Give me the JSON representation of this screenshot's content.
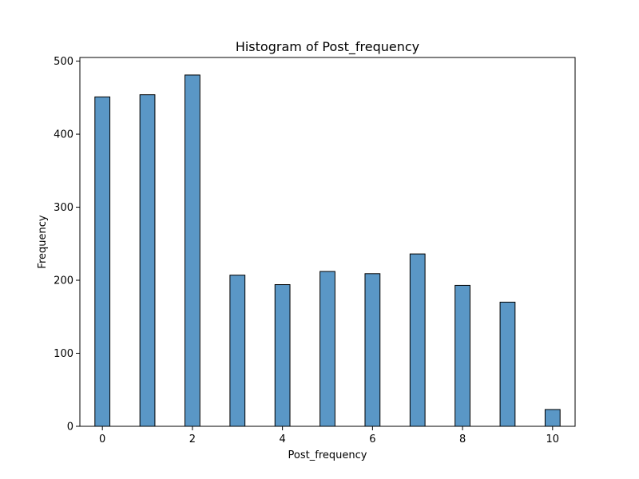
{
  "chart_data": {
    "type": "bar",
    "title": "Histogram of Post_frequency",
    "xlabel": "Post_frequency",
    "ylabel": "Frequency",
    "xlim": [
      -0.5,
      10.5
    ],
    "ylim": [
      0,
      505
    ],
    "xticks": [
      0,
      2,
      4,
      6,
      8,
      10
    ],
    "yticks": [
      0,
      100,
      200,
      300,
      400,
      500
    ],
    "bin_width": 0.333,
    "bins": [
      {
        "x": 0,
        "value": 451
      },
      {
        "x": 1,
        "value": 454
      },
      {
        "x": 2,
        "value": 481
      },
      {
        "x": 3,
        "value": 207
      },
      {
        "x": 4,
        "value": 194
      },
      {
        "x": 5,
        "value": 212
      },
      {
        "x": 6,
        "value": 209
      },
      {
        "x": 7,
        "value": 236
      },
      {
        "x": 8,
        "value": 193
      },
      {
        "x": 9,
        "value": 170
      },
      {
        "x": 10,
        "value": 23
      }
    ],
    "grid": false,
    "legend": "none",
    "colors": {
      "bar_fill": "#5a97c6",
      "bar_edge": "#000000"
    }
  }
}
